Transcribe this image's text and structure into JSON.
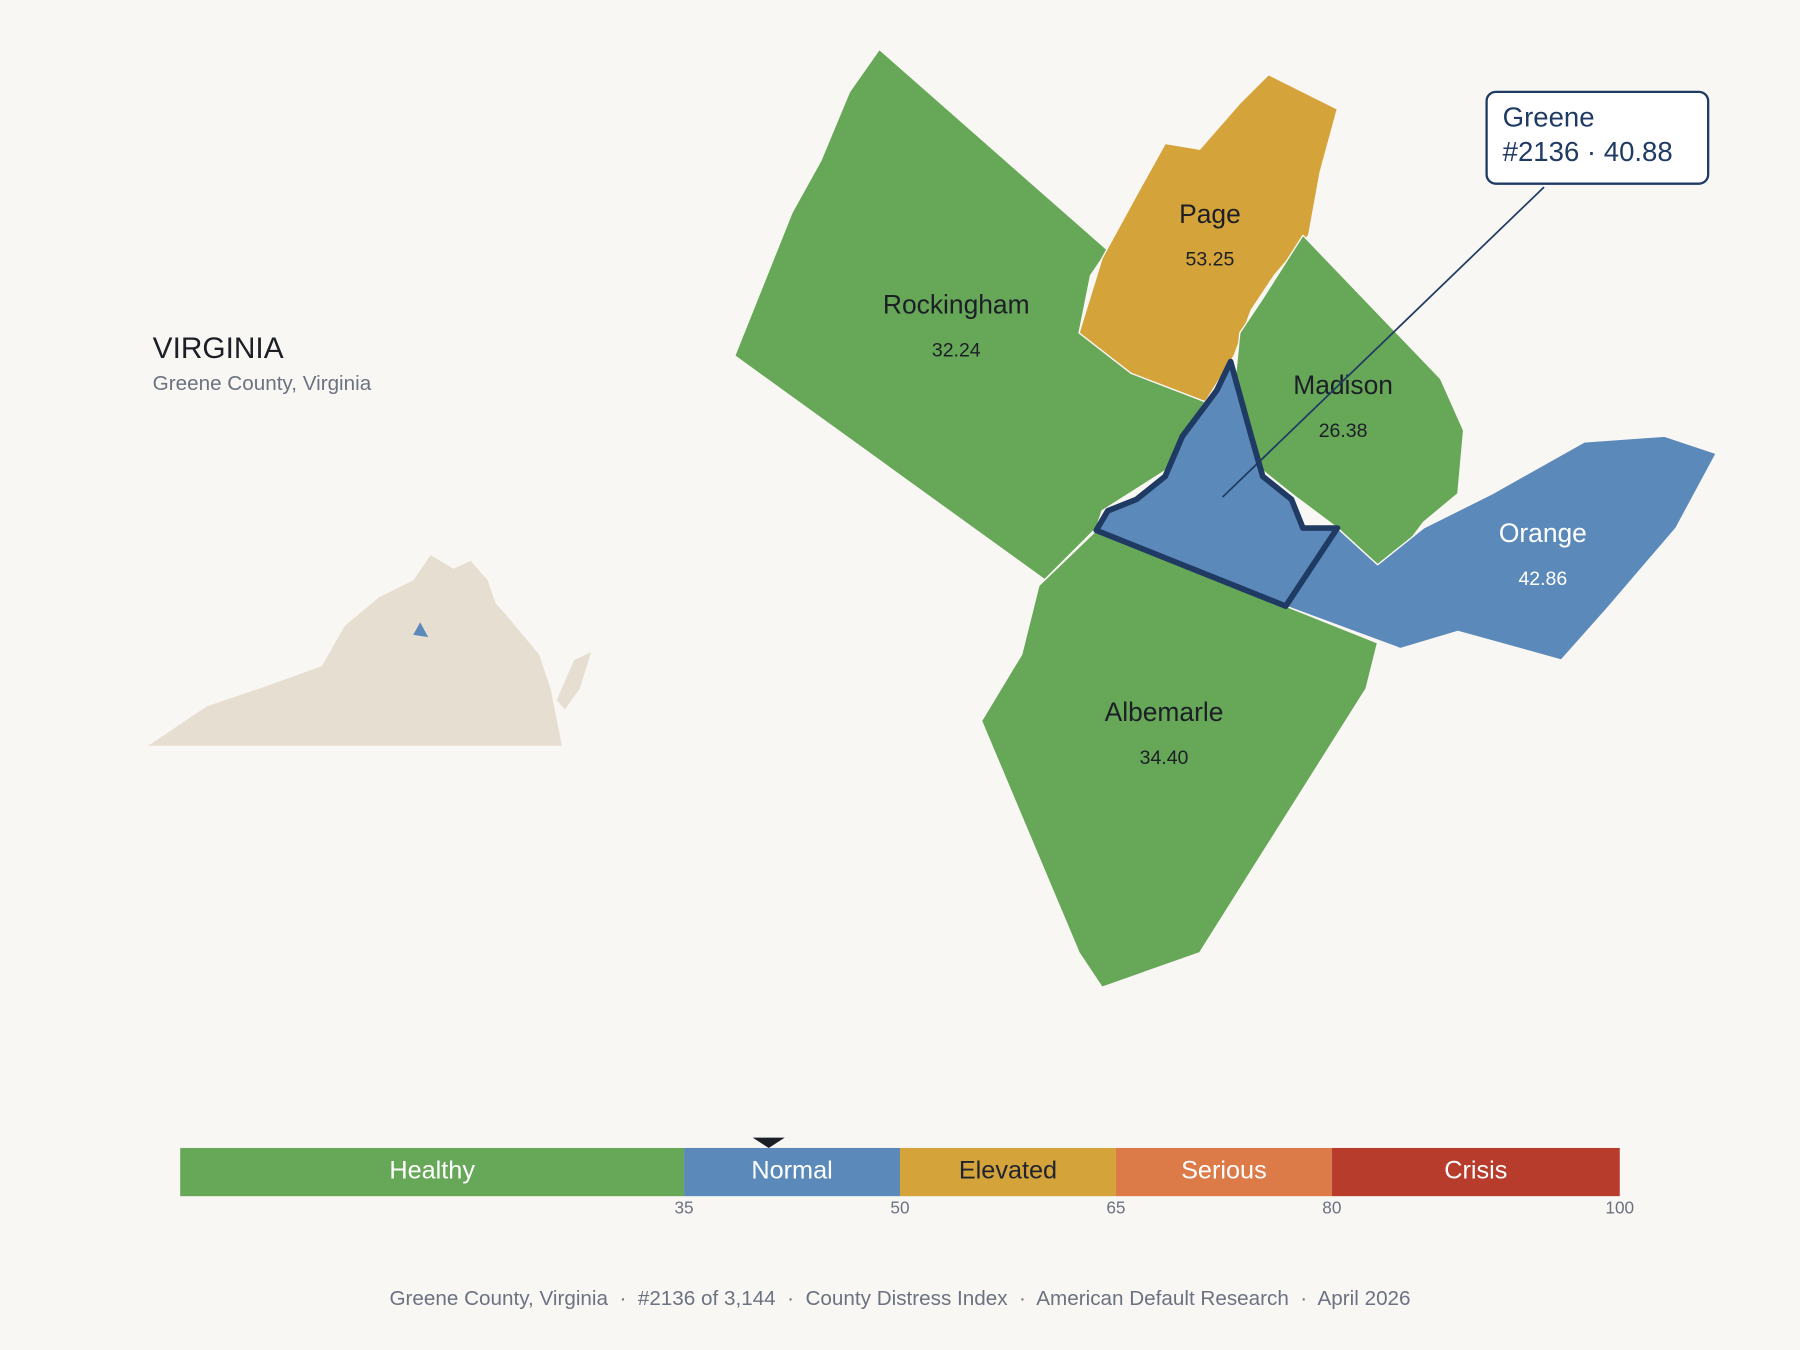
{
  "title": "VIRGINIA",
  "subtitle": "Greene County, Virginia",
  "counties": [
    {
      "name": "Rockingham",
      "value": 32.24,
      "value_label": "32.24"
    },
    {
      "name": "Page",
      "value": 53.25,
      "value_label": "53.25"
    },
    {
      "name": "Madison",
      "value": 26.38,
      "value_label": "26.38"
    },
    {
      "name": "Orange",
      "value": 42.86,
      "value_label": "42.86"
    },
    {
      "name": "Albemarle",
      "value": 34.4,
      "value_label": "34.40"
    },
    {
      "name": "Greene",
      "value": 40.88
    }
  ],
  "callout": {
    "detail": "#2136 · 40.88"
  },
  "legend": {
    "range": [
      0,
      100
    ],
    "bands": [
      {
        "label": "Healthy",
        "max": 35,
        "color": "#67a758",
        "label_color": "#ffffff"
      },
      {
        "label": "Normal",
        "max": 50,
        "color": "#5b89ba",
        "label_color": "#ffffff"
      },
      {
        "label": "Elevated",
        "max": 65,
        "color": "#d4a33a",
        "label_color": "#1f2430"
      },
      {
        "label": "Serious",
        "max": 80,
        "color": "#dc7a48",
        "label_color": "#ffffff"
      },
      {
        "label": "Crisis",
        "max": 100,
        "color": "#b83c2c",
        "label_color": "#ffffff"
      }
    ]
  },
  "footer": "Greene County, Virginia  ·  #2136 of 3,144  ·  County Distress Index  ·  American Default Research  ·  April 2026"
}
